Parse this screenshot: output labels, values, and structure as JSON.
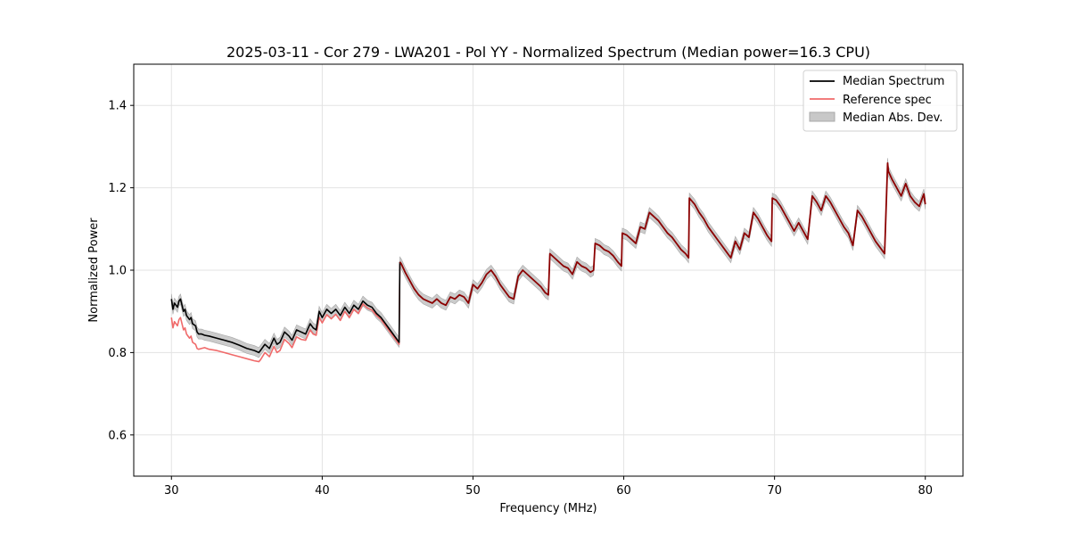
{
  "chart_data": {
    "type": "line",
    "title": "2025-03-11 - Cor 279 - LWA201 - Pol YY - Normalized Spectrum (Median power=16.3 CPU)",
    "xlabel": "Frequency (MHz)",
    "ylabel": "Normalized Power",
    "xlim": [
      27.5,
      82.5
    ],
    "ylim": [
      0.5,
      1.5
    ],
    "xticks": [
      30,
      40,
      50,
      60,
      70,
      80
    ],
    "yticks": [
      0.6,
      0.8,
      1.0,
      1.2,
      1.4
    ],
    "xtick_labels": [
      "30",
      "40",
      "50",
      "60",
      "70",
      "80"
    ],
    "ytick_labels": [
      "0.6",
      "0.8",
      "1.0",
      "1.2",
      "1.4"
    ],
    "grid": true,
    "legend_position": "top-right",
    "legend": [
      "Median Spectrum",
      "Reference spec",
      "Median Abs. Dev."
    ],
    "colors": {
      "median": "#000000",
      "reference": "#f06a6a",
      "mad_fill": "#c8c8c8",
      "mad_edge": "#a8a8a8",
      "overlap": "#8b0000"
    },
    "mad_half_width": 0.012,
    "series": [
      {
        "name": "Median Spectrum",
        "x": [
          30.0,
          30.1,
          30.2,
          30.4,
          30.5,
          30.6,
          30.8,
          30.9,
          31.0,
          31.2,
          31.3,
          31.4,
          31.6,
          31.7,
          31.8,
          32.0,
          32.2,
          32.5,
          33.0,
          33.5,
          34.0,
          34.5,
          35.0,
          35.5,
          35.8,
          35.9,
          36.2,
          36.5,
          36.8,
          37.0,
          37.2,
          37.5,
          37.8,
          38.0,
          38.3,
          38.6,
          38.9,
          39.2,
          39.4,
          39.6,
          39.8,
          40.0,
          40.3,
          40.6,
          40.9,
          41.2,
          41.5,
          41.8,
          42.1,
          42.4,
          42.7,
          43.0,
          43.3,
          43.6,
          43.9,
          44.2,
          44.5,
          44.8,
          45.1,
          45.15,
          45.25,
          45.5,
          45.8,
          46.1,
          46.4,
          46.7,
          47.0,
          47.3,
          47.6,
          47.9,
          48.2,
          48.5,
          48.8,
          49.1,
          49.4,
          49.7,
          50.0,
          50.3,
          50.6,
          50.9,
          51.2,
          51.5,
          51.8,
          52.1,
          52.4,
          52.7,
          53.0,
          53.3,
          53.6,
          53.9,
          54.2,
          54.5,
          54.8,
          55.0,
          55.1,
          55.4,
          55.7,
          56.0,
          56.3,
          56.6,
          56.9,
          57.2,
          57.5,
          57.8,
          58.0,
          58.1,
          58.4,
          58.7,
          59.0,
          59.3,
          59.6,
          59.85,
          59.9,
          60.2,
          60.5,
          60.8,
          61.1,
          61.4,
          61.7,
          62.0,
          62.3,
          62.6,
          62.9,
          63.2,
          63.5,
          63.8,
          64.1,
          64.3,
          64.35,
          64.7,
          65.0,
          65.3,
          65.6,
          65.9,
          66.2,
          66.5,
          66.8,
          67.1,
          67.4,
          67.7,
          68.0,
          68.3,
          68.6,
          68.9,
          69.2,
          69.5,
          69.8,
          69.85,
          70.1,
          70.4,
          70.7,
          71.0,
          71.3,
          71.6,
          71.9,
          72.2,
          72.5,
          72.8,
          73.1,
          73.4,
          73.7,
          74.0,
          74.3,
          74.6,
          74.9,
          75.2,
          75.5,
          75.8,
          76.1,
          76.4,
          76.7,
          77.0,
          77.3,
          77.5,
          77.55,
          77.8,
          78.1,
          78.4,
          78.7,
          79.0,
          79.3,
          79.6,
          79.9,
          80.0
        ],
        "y": [
          0.93,
          0.905,
          0.92,
          0.91,
          0.925,
          0.93,
          0.9,
          0.905,
          0.89,
          0.88,
          0.885,
          0.87,
          0.865,
          0.85,
          0.845,
          0.845,
          0.842,
          0.84,
          0.835,
          0.83,
          0.825,
          0.818,
          0.81,
          0.805,
          0.8,
          0.805,
          0.82,
          0.81,
          0.835,
          0.82,
          0.825,
          0.85,
          0.84,
          0.83,
          0.855,
          0.85,
          0.845,
          0.87,
          0.86,
          0.855,
          0.9,
          0.885,
          0.905,
          0.895,
          0.905,
          0.89,
          0.91,
          0.895,
          0.915,
          0.905,
          0.925,
          0.915,
          0.91,
          0.895,
          0.885,
          0.87,
          0.855,
          0.84,
          0.825,
          1.02,
          1.015,
          0.995,
          0.975,
          0.955,
          0.94,
          0.93,
          0.925,
          0.92,
          0.93,
          0.92,
          0.915,
          0.935,
          0.93,
          0.94,
          0.935,
          0.92,
          0.965,
          0.955,
          0.97,
          0.99,
          1.0,
          0.985,
          0.965,
          0.95,
          0.935,
          0.93,
          0.985,
          1.0,
          0.99,
          0.98,
          0.97,
          0.96,
          0.945,
          0.94,
          1.04,
          1.03,
          1.02,
          1.01,
          1.005,
          0.99,
          1.02,
          1.01,
          1.005,
          0.995,
          1.0,
          1.065,
          1.06,
          1.05,
          1.045,
          1.035,
          1.02,
          1.01,
          1.09,
          1.085,
          1.075,
          1.065,
          1.105,
          1.1,
          1.14,
          1.13,
          1.12,
          1.105,
          1.09,
          1.08,
          1.065,
          1.05,
          1.04,
          1.03,
          1.175,
          1.16,
          1.14,
          1.125,
          1.105,
          1.09,
          1.075,
          1.06,
          1.045,
          1.03,
          1.07,
          1.05,
          1.09,
          1.08,
          1.14,
          1.125,
          1.105,
          1.085,
          1.07,
          1.175,
          1.17,
          1.155,
          1.135,
          1.115,
          1.095,
          1.115,
          1.095,
          1.075,
          1.18,
          1.165,
          1.145,
          1.18,
          1.165,
          1.145,
          1.125,
          1.105,
          1.09,
          1.06,
          1.145,
          1.13,
          1.11,
          1.09,
          1.07,
          1.055,
          1.04,
          1.26,
          1.24,
          1.22,
          1.2,
          1.18,
          1.21,
          1.18,
          1.165,
          1.155,
          1.185,
          1.16
        ]
      },
      {
        "name": "Reference spec",
        "x": [
          30.0,
          30.1,
          30.2,
          30.4,
          30.5,
          30.6,
          30.8,
          30.9,
          31.0,
          31.2,
          31.3,
          31.4,
          31.6,
          31.7,
          31.8,
          32.0,
          32.2,
          32.5,
          33.0,
          33.5,
          34.0,
          34.5,
          35.0,
          35.5,
          35.8,
          35.9,
          36.2,
          36.5,
          36.8,
          37.0,
          37.2,
          37.5,
          37.8,
          38.0,
          38.3,
          38.6,
          38.9,
          39.2,
          39.4,
          39.6,
          39.8,
          40.0,
          40.3,
          40.6,
          40.9,
          41.2,
          41.5,
          41.8,
          42.1,
          42.4,
          42.7,
          43.0,
          43.3,
          43.6,
          43.9,
          44.2,
          44.5,
          44.8,
          45.1,
          45.15
        ],
        "y": [
          0.885,
          0.86,
          0.875,
          0.865,
          0.88,
          0.885,
          0.855,
          0.86,
          0.845,
          0.835,
          0.84,
          0.825,
          0.82,
          0.81,
          0.808,
          0.81,
          0.812,
          0.808,
          0.805,
          0.8,
          0.795,
          0.79,
          0.785,
          0.78,
          0.778,
          0.782,
          0.8,
          0.79,
          0.815,
          0.8,
          0.805,
          0.832,
          0.822,
          0.812,
          0.838,
          0.832,
          0.83,
          0.855,
          0.845,
          0.842,
          0.885,
          0.872,
          0.892,
          0.882,
          0.893,
          0.878,
          0.9,
          0.885,
          0.905,
          0.895,
          0.918,
          0.908,
          0.903,
          0.89,
          0.88,
          0.865,
          0.85,
          0.835,
          0.82,
          1.015
        ]
      }
    ]
  }
}
